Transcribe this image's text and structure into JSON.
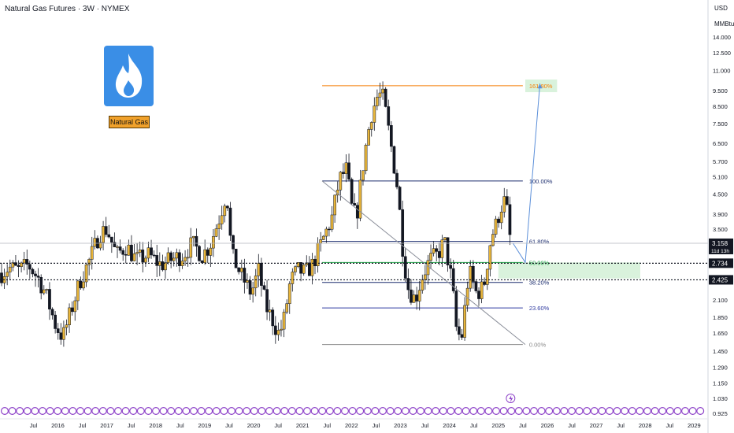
{
  "header": {
    "symbol_title": "Natural Gas Futures · 3W · NYMEX"
  },
  "logo": {
    "label": "Natural Gas",
    "icon": "flame-icon",
    "card_color": "#3a8ee6",
    "tag_color": "#f0a12b"
  },
  "price_axis": {
    "currency": "USD",
    "unit": "MMBtu"
  },
  "chart_data": {
    "type": "candlestick",
    "y_scale": "log",
    "ylim": [
      0.9,
      18.5
    ],
    "y_ticks": [
      "14.000",
      "12.500",
      "11.000",
      "9.500",
      "8.500",
      "7.500",
      "6.500",
      "5.700",
      "5.100",
      "4.500",
      "3.900",
      "3.500",
      "2.100",
      "1.850",
      "1.650",
      "1.450",
      "1.290",
      "1.150",
      "1.030",
      "0.925"
    ],
    "x_ticks": [
      {
        "label": "Jul",
        "t": 2015.5
      },
      {
        "label": "2016",
        "t": 2016
      },
      {
        "label": "Jul",
        "t": 2016.5
      },
      {
        "label": "2017",
        "t": 2017
      },
      {
        "label": "Jul",
        "t": 2017.5
      },
      {
        "label": "2018",
        "t": 2018
      },
      {
        "label": "Jul",
        "t": 2018.5
      },
      {
        "label": "2019",
        "t": 2019
      },
      {
        "label": "Jul",
        "t": 2019.5
      },
      {
        "label": "2020",
        "t": 2020
      },
      {
        "label": "Jul",
        "t": 2020.5
      },
      {
        "label": "2021",
        "t": 2021
      },
      {
        "label": "Jul",
        "t": 2021.5
      },
      {
        "label": "2022",
        "t": 2022
      },
      {
        "label": "Jul",
        "t": 2022.5
      },
      {
        "label": "2023",
        "t": 2023
      },
      {
        "label": "Jul",
        "t": 2023.5
      },
      {
        "label": "2024",
        "t": 2024
      },
      {
        "label": "Jul",
        "t": 2024.5
      },
      {
        "label": "2025",
        "t": 2025
      },
      {
        "label": "Jul",
        "t": 2025.5
      },
      {
        "label": "2026",
        "t": 2026
      },
      {
        "label": "Jul",
        "t": 2026.5
      },
      {
        "label": "2027",
        "t": 2027
      },
      {
        "label": "Jul",
        "t": 2027.5
      },
      {
        "label": "2028",
        "t": 2028
      },
      {
        "label": "Jul",
        "t": 2028.5
      },
      {
        "label": "2029",
        "t": 2029
      }
    ],
    "price_series": [
      [
        2014.85,
        2.55
      ],
      [
        2015.0,
        2.65
      ],
      [
        2015.2,
        2.6
      ],
      [
        2015.4,
        2.7
      ],
      [
        2015.6,
        2.45
      ],
      [
        2015.75,
        2.2
      ],
      [
        2015.95,
        1.75
      ],
      [
        2016.1,
        1.6
      ],
      [
        2016.25,
        1.9
      ],
      [
        2016.45,
        2.4
      ],
      [
        2016.65,
        2.8
      ],
      [
        2016.85,
        3.4
      ],
      [
        2017.0,
        3.5
      ],
      [
        2017.2,
        2.9
      ],
      [
        2017.4,
        3.1
      ],
      [
        2017.6,
        2.8
      ],
      [
        2017.85,
        2.9
      ],
      [
        2018.1,
        2.7
      ],
      [
        2018.3,
        2.8
      ],
      [
        2018.55,
        2.9
      ],
      [
        2018.75,
        3.15
      ],
      [
        2018.95,
        2.9
      ],
      [
        2019.1,
        3.1
      ],
      [
        2019.3,
        3.8
      ],
      [
        2019.45,
        4.6
      ],
      [
        2019.55,
        2.9
      ],
      [
        2019.75,
        2.5
      ],
      [
        2019.95,
        2.2
      ],
      [
        2020.1,
        2.6
      ],
      [
        2020.25,
        2.0
      ],
      [
        2020.4,
        1.8
      ],
      [
        2020.5,
        1.65
      ],
      [
        2020.6,
        1.75
      ],
      [
        2020.75,
        2.4
      ],
      [
        2020.9,
        2.6
      ],
      [
        2021.05,
        2.55
      ],
      [
        2021.2,
        2.7
      ],
      [
        2021.4,
        3.2
      ],
      [
        2021.6,
        3.8
      ],
      [
        2021.75,
        5.0
      ],
      [
        2021.9,
        5.4
      ],
      [
        2022.0,
        4.1
      ],
      [
        2022.1,
        3.8
      ],
      [
        2022.25,
        5.8
      ],
      [
        2022.4,
        8.0
      ],
      [
        2022.55,
        9.3
      ],
      [
        2022.65,
        9.0
      ],
      [
        2022.8,
        6.5
      ],
      [
        2022.95,
        4.6
      ],
      [
        2023.05,
        3.0
      ],
      [
        2023.15,
        2.3
      ],
      [
        2023.3,
        2.1
      ],
      [
        2023.45,
        2.5
      ],
      [
        2023.6,
        2.8
      ],
      [
        2023.75,
        2.9
      ],
      [
        2023.9,
        3.2
      ],
      [
        2024.05,
        2.4
      ],
      [
        2024.15,
        1.65
      ],
      [
        2024.25,
        1.6
      ],
      [
        2024.4,
        2.6
      ],
      [
        2024.55,
        2.2
      ],
      [
        2024.7,
        2.3
      ],
      [
        2024.85,
        3.3
      ],
      [
        2024.95,
        3.6
      ],
      [
        2025.05,
        4.1
      ],
      [
        2025.15,
        4.35
      ],
      [
        2025.25,
        3.158
      ]
    ],
    "fibonacci": {
      "levels": [
        {
          "label": "161.80%",
          "price": 9.85,
          "color": "#f57c00"
        },
        {
          "label": "100.00%",
          "price": 4.95,
          "color": "#1c2d6e"
        },
        {
          "label": "61.80%",
          "price": 3.2,
          "color": "#1c2d6e"
        },
        {
          "label": "50.00%",
          "price": 2.75,
          "color": "#21a84a"
        },
        {
          "label": "38.20%",
          "price": 2.38,
          "color": "#1c2d6e"
        },
        {
          "label": "23.60%",
          "price": 1.98,
          "color": "#2f3aa0"
        },
        {
          "label": "0.00%",
          "price": 1.52,
          "color": "#888888"
        }
      ],
      "t_start": 2021.4,
      "t_end": 2025.5
    },
    "zones": [
      {
        "t0": 2025.0,
        "t1": 2027.9,
        "p0": 2.45,
        "p1": 2.75,
        "color": "#d9f2dc"
      },
      {
        "t0": 2025.55,
        "t1": 2026.2,
        "p0": 9.4,
        "p1": 10.3,
        "color": "#d9f2dc"
      }
    ],
    "trendline": {
      "t0": 2021.4,
      "p0": 4.95,
      "t1": 2025.55,
      "p1": 1.52
    },
    "projection": [
      [
        2025.3,
        3.158
      ],
      [
        2025.55,
        2.75
      ],
      [
        2025.85,
        10.0
      ]
    ],
    "h_lines": [
      {
        "price": 2.734,
        "label": "2.734"
      },
      {
        "price": 2.425,
        "label": "2.425"
      }
    ],
    "last_price": {
      "price": 3.158,
      "label": "3.158",
      "countdown": "11d 13h"
    }
  }
}
